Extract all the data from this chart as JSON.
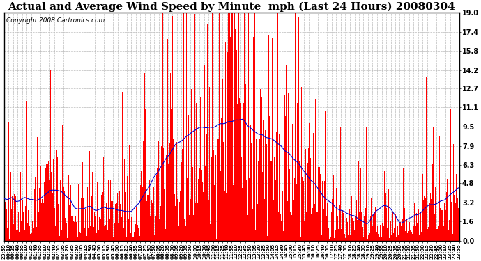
{
  "title": "Actual and Average Wind Speed by Minute  mph (Last 24 Hours) 20080304",
  "copyright": "Copyright 2008 Cartronics.com",
  "yticks": [
    0.0,
    1.6,
    3.2,
    4.8,
    6.3,
    7.9,
    9.5,
    11.1,
    12.7,
    14.2,
    15.8,
    17.4,
    19.0
  ],
  "ymin": 0.0,
  "ymax": 19.0,
  "bar_color": "#ff0000",
  "line_color": "#0000cc",
  "background_color": "#ffffff",
  "grid_color": "#bbbbbb",
  "title_fontsize": 11,
  "copyright_fontsize": 6.5,
  "xtick_labels": [
    "23:59",
    "00:10",
    "00:25",
    "00:40",
    "00:55",
    "01:10",
    "01:25",
    "01:40",
    "01:55",
    "02:10",
    "02:25",
    "02:40",
    "02:55",
    "03:05",
    "03:20",
    "03:35",
    "03:50",
    "04:05",
    "04:15",
    "04:30",
    "04:45",
    "05:00",
    "05:15",
    "05:30",
    "05:45",
    "06:00",
    "06:15",
    "06:25",
    "06:40",
    "06:55",
    "07:10",
    "07:25",
    "07:35",
    "07:50",
    "08:05",
    "08:20",
    "08:35",
    "08:50",
    "09:05",
    "09:20",
    "09:35",
    "09:50",
    "10:05",
    "10:15",
    "10:30",
    "10:45",
    "11:00",
    "11:15",
    "11:25",
    "11:40",
    "11:55",
    "12:10",
    "12:25",
    "12:35",
    "12:50",
    "13:05",
    "13:20",
    "13:35",
    "13:50",
    "14:05",
    "14:15",
    "14:30",
    "14:45",
    "15:00",
    "15:15",
    "15:30",
    "15:45",
    "16:00",
    "16:10",
    "16:25",
    "16:40",
    "16:55",
    "17:10",
    "17:25",
    "17:40",
    "17:55",
    "18:10",
    "18:25",
    "18:40",
    "18:55",
    "19:10",
    "19:25",
    "19:40",
    "19:55",
    "20:10",
    "20:25",
    "20:35",
    "20:50",
    "21:05",
    "21:20",
    "21:35",
    "21:50",
    "22:00",
    "22:15",
    "22:30",
    "22:45",
    "23:00",
    "23:10",
    "23:25",
    "23:40",
    "23:55"
  ],
  "n_data_points": 1440
}
